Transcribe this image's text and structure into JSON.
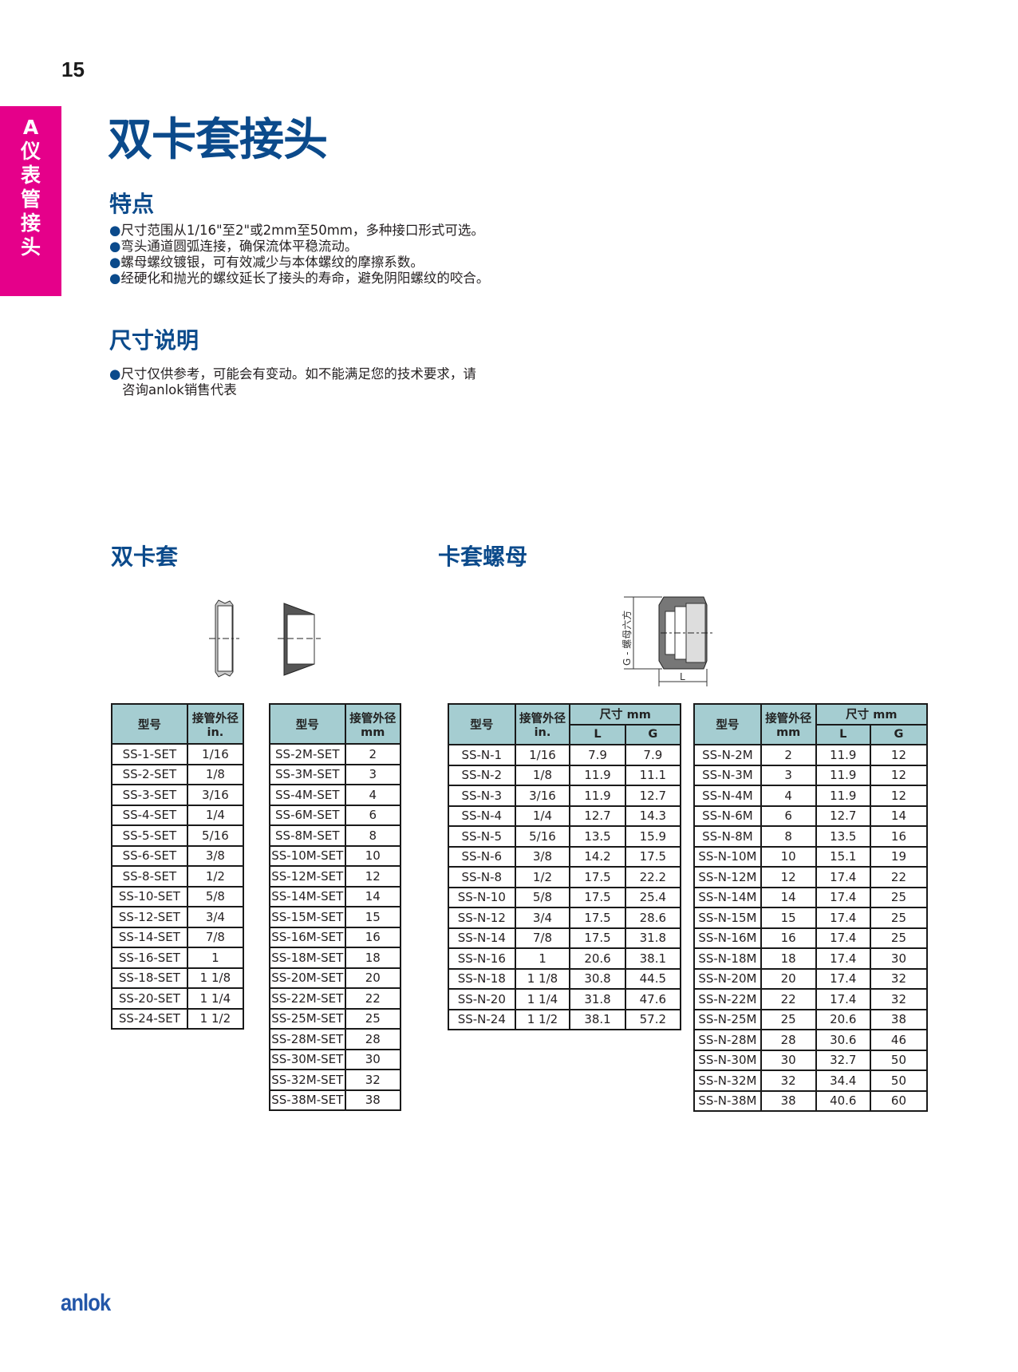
{
  "page_number": "15",
  "side_tab": {
    "letter": "A",
    "chars": [
      "仪",
      "表",
      "管",
      "接",
      "头"
    ]
  },
  "title": "双卡套接头",
  "features": {
    "heading": "特点",
    "bullet": "●",
    "items": [
      "尺寸范围从1/16\"至2\"或2mm至50mm，多种接口形式可选。",
      "弯头通道圆弧连接，确保流体平稳流动。",
      "螺母螺纹镀银，可有效减少与本体螺纹的摩擦系数。",
      "经硬化和抛光的螺纹延长了接头的寿命，避免阴阳螺纹的咬合。"
    ]
  },
  "dimensions": {
    "heading": "尺寸说明",
    "note_line1": "尺寸仅供参考，可能会有变动。如不能满足您的技术要求，请",
    "note_line2": "咨询anlok销售代表"
  },
  "ferrule_section": {
    "heading": "双卡套"
  },
  "nut_section": {
    "heading": "卡套螺母",
    "drawing_label_g": "G - 螺母六方",
    "drawing_label_l": "L"
  },
  "table_ferrule_in": {
    "headers": [
      "型号",
      "接管外径",
      "in."
    ],
    "rows": [
      [
        "SS-1-SET",
        "1/16"
      ],
      [
        "SS-2-SET",
        "1/8"
      ],
      [
        "SS-3-SET",
        "3/16"
      ],
      [
        "SS-4-SET",
        "1/4"
      ],
      [
        "SS-5-SET",
        "5/16"
      ],
      [
        "SS-6-SET",
        "3/8"
      ],
      [
        "SS-8-SET",
        "1/2"
      ],
      [
        "SS-10-SET",
        "5/8"
      ],
      [
        "SS-12-SET",
        "3/4"
      ],
      [
        "SS-14-SET",
        "7/8"
      ],
      [
        "SS-16-SET",
        "1"
      ],
      [
        "SS-18-SET",
        "1 1/8"
      ],
      [
        "SS-20-SET",
        "1 1/4"
      ],
      [
        "SS-24-SET",
        "1 1/2"
      ]
    ]
  },
  "table_ferrule_mm": {
    "headers": [
      "型号",
      "接管外径",
      "mm"
    ],
    "rows": [
      [
        "SS-2M-SET",
        "2"
      ],
      [
        "SS-3M-SET",
        "3"
      ],
      [
        "SS-4M-SET",
        "4"
      ],
      [
        "SS-6M-SET",
        "6"
      ],
      [
        "SS-8M-SET",
        "8"
      ],
      [
        "SS-10M-SET",
        "10"
      ],
      [
        "SS-12M-SET",
        "12"
      ],
      [
        "SS-14M-SET",
        "14"
      ],
      [
        "SS-15M-SET",
        "15"
      ],
      [
        "SS-16M-SET",
        "16"
      ],
      [
        "SS-18M-SET",
        "18"
      ],
      [
        "SS-20M-SET",
        "20"
      ],
      [
        "SS-22M-SET",
        "22"
      ],
      [
        "SS-25M-SET",
        "25"
      ],
      [
        "SS-28M-SET",
        "28"
      ],
      [
        "SS-30M-SET",
        "30"
      ],
      [
        "SS-32M-SET",
        "32"
      ],
      [
        "SS-38M-SET",
        "38"
      ]
    ]
  },
  "table_nut_in": {
    "headers": [
      "型号",
      "接管外径",
      "in.",
      "尺寸 mm",
      "L",
      "G"
    ],
    "rows": [
      [
        "SS-N-1",
        "1/16",
        "7.9",
        "7.9"
      ],
      [
        "SS-N-2",
        "1/8",
        "11.9",
        "11.1"
      ],
      [
        "SS-N-3",
        "3/16",
        "11.9",
        "12.7"
      ],
      [
        "SS-N-4",
        "1/4",
        "12.7",
        "14.3"
      ],
      [
        "SS-N-5",
        "5/16",
        "13.5",
        "15.9"
      ],
      [
        "SS-N-6",
        "3/8",
        "14.2",
        "17.5"
      ],
      [
        "SS-N-8",
        "1/2",
        "17.5",
        "22.2"
      ],
      [
        "SS-N-10",
        "5/8",
        "17.5",
        "25.4"
      ],
      [
        "SS-N-12",
        "3/4",
        "17.5",
        "28.6"
      ],
      [
        "SS-N-14",
        "7/8",
        "17.5",
        "31.8"
      ],
      [
        "SS-N-16",
        "1",
        "20.6",
        "38.1"
      ],
      [
        "SS-N-18",
        "1 1/8",
        "30.8",
        "44.5"
      ],
      [
        "SS-N-20",
        "1 1/4",
        "31.8",
        "47.6"
      ],
      [
        "SS-N-24",
        "1 1/2",
        "38.1",
        "57.2"
      ]
    ]
  },
  "table_nut_mm": {
    "headers": [
      "型号",
      "接管外径",
      "mm",
      "尺寸 mm",
      "L",
      "G"
    ],
    "rows": [
      [
        "SS-N-2M",
        "2",
        "11.9",
        "12"
      ],
      [
        "SS-N-3M",
        "3",
        "11.9",
        "12"
      ],
      [
        "SS-N-4M",
        "4",
        "11.9",
        "12"
      ],
      [
        "SS-N-6M",
        "6",
        "12.7",
        "14"
      ],
      [
        "SS-N-8M",
        "8",
        "13.5",
        "16"
      ],
      [
        "SS-N-10M",
        "10",
        "15.1",
        "19"
      ],
      [
        "SS-N-12M",
        "12",
        "17.4",
        "22"
      ],
      [
        "SS-N-14M",
        "14",
        "17.4",
        "25"
      ],
      [
        "SS-N-15M",
        "15",
        "17.4",
        "25"
      ],
      [
        "SS-N-16M",
        "16",
        "17.4",
        "25"
      ],
      [
        "SS-N-18M",
        "18",
        "17.4",
        "30"
      ],
      [
        "SS-N-20M",
        "20",
        "17.4",
        "32"
      ],
      [
        "SS-N-22M",
        "22",
        "17.4",
        "32"
      ],
      [
        "SS-N-25M",
        "25",
        "20.6",
        "38"
      ],
      [
        "SS-N-28M",
        "28",
        "30.6",
        "46"
      ],
      [
        "SS-N-30M",
        "30",
        "32.7",
        "50"
      ],
      [
        "SS-N-32M",
        "32",
        "34.4",
        "50"
      ],
      [
        "SS-N-38M",
        "38",
        "40.6",
        "60"
      ]
    ]
  },
  "logo": "anlok",
  "colors": {
    "brand_blue": "#0b4a8b",
    "side_tab": "#e5008a",
    "table_header": "#a5cdd1",
    "logo": "#2356a8"
  }
}
